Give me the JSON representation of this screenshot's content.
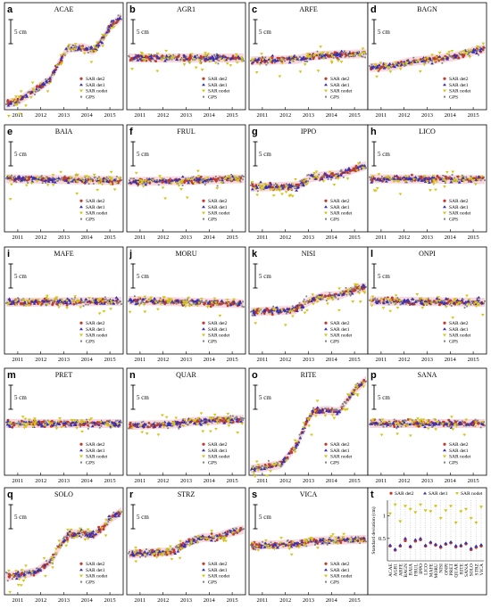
{
  "figure": {
    "scale_bar_label": "5 cm",
    "years": [
      "2011",
      "2012",
      "2013",
      "2014",
      "2015"
    ],
    "legend": [
      "SAR det2",
      "SAR det1",
      "SAR nodet",
      "GPS"
    ],
    "colors": {
      "SAR det2": "#c0392b",
      "SAR det1": "#3a2fb0",
      "SAR nodet": "#d4c41a",
      "GPS": "#7f7f7f",
      "band": "#f4b6c2"
    }
  },
  "chart_data": [
    {
      "type": "scatter",
      "panel": "a",
      "title": "ACAE",
      "x_range": [
        2010.5,
        2015.5
      ],
      "y_unit": "cm",
      "keypoints": [
        [
          2010.5,
          -9.5
        ],
        [
          2011.0,
          -9.0
        ],
        [
          2011.8,
          -6.5
        ],
        [
          2012.4,
          -4.5
        ],
        [
          2012.9,
          0.0
        ],
        [
          2013.2,
          2.0
        ],
        [
          2013.8,
          2.2
        ],
        [
          2014.3,
          1.5
        ],
        [
          2014.7,
          4.0
        ],
        [
          2015.0,
          6.5
        ],
        [
          2015.5,
          8.5
        ]
      ]
    },
    {
      "type": "scatter",
      "panel": "b",
      "title": "AGR1",
      "x_range": [
        2010.5,
        2015.5
      ],
      "y_unit": "cm",
      "keypoints": [
        [
          2010.5,
          0
        ],
        [
          2015.5,
          0
        ]
      ]
    },
    {
      "type": "scatter",
      "panel": "c",
      "title": "ARFE",
      "x_range": [
        2010.5,
        2015.5
      ],
      "y_unit": "cm",
      "keypoints": [
        [
          2010.5,
          -0.6
        ],
        [
          2012.5,
          -0.3
        ],
        [
          2013.3,
          0.5
        ],
        [
          2015.5,
          0.9
        ]
      ]
    },
    {
      "type": "scatter",
      "panel": "d",
      "title": "BAGN",
      "x_range": [
        2010.5,
        2015.5
      ],
      "y_unit": "cm",
      "keypoints": [
        [
          2010.5,
          -2.0
        ],
        [
          2011.4,
          -1.8
        ],
        [
          2012.2,
          -0.8
        ],
        [
          2013.0,
          -0.4
        ],
        [
          2013.8,
          0.0
        ],
        [
          2014.2,
          0.3
        ],
        [
          2015.0,
          1.4
        ],
        [
          2015.5,
          1.9
        ]
      ]
    },
    {
      "type": "scatter",
      "panel": "e",
      "title": "BAIA",
      "x_range": [
        2010.5,
        2015.5
      ],
      "y_unit": "cm",
      "keypoints": [
        [
          2010.5,
          0.3
        ],
        [
          2015.5,
          -0.1
        ]
      ]
    },
    {
      "type": "scatter",
      "panel": "f",
      "title": "FRUL",
      "x_range": [
        2010.5,
        2015.5
      ],
      "y_unit": "cm",
      "keypoints": [
        [
          2010.5,
          -0.3
        ],
        [
          2013.0,
          -0.1
        ],
        [
          2015.5,
          0.3
        ]
      ]
    },
    {
      "type": "scatter",
      "panel": "g",
      "title": "IPPO",
      "x_range": [
        2010.5,
        2015.5
      ],
      "y_unit": "cm",
      "keypoints": [
        [
          2010.5,
          -1.5
        ],
        [
          2012.5,
          -1.2
        ],
        [
          2013.1,
          0.5
        ],
        [
          2013.8,
          1.0
        ],
        [
          2014.3,
          1.1
        ],
        [
          2015.0,
          2.3
        ],
        [
          2015.5,
          3.0
        ]
      ]
    },
    {
      "type": "scatter",
      "panel": "h",
      "title": "LICO",
      "x_range": [
        2010.5,
        2015.5
      ],
      "y_unit": "cm",
      "keypoints": [
        [
          2010.5,
          0.3
        ],
        [
          2015.5,
          0.1
        ]
      ]
    },
    {
      "type": "scatter",
      "panel": "i",
      "title": "MAFE",
      "x_range": [
        2010.5,
        2015.5
      ],
      "y_unit": "cm",
      "keypoints": [
        [
          2010.5,
          0.0
        ],
        [
          2015.5,
          0.2
        ]
      ]
    },
    {
      "type": "scatter",
      "panel": "j",
      "title": "MORU",
      "x_range": [
        2010.5,
        2015.5
      ],
      "y_unit": "cm",
      "keypoints": [
        [
          2010.5,
          0.4
        ],
        [
          2015.5,
          -0.3
        ]
      ]
    },
    {
      "type": "scatter",
      "panel": "k",
      "title": "NISI",
      "x_range": [
        2010.5,
        2015.5
      ],
      "y_unit": "cm",
      "keypoints": [
        [
          2010.5,
          -2.0
        ],
        [
          2012.4,
          -1.6
        ],
        [
          2013.1,
          0.4
        ],
        [
          2013.7,
          1.3
        ],
        [
          2014.3,
          1.4
        ],
        [
          2015.0,
          2.6
        ],
        [
          2015.5,
          3.2
        ]
      ]
    },
    {
      "type": "scatter",
      "panel": "l",
      "title": "ONPI",
      "x_range": [
        2010.5,
        2015.5
      ],
      "y_unit": "cm",
      "keypoints": [
        [
          2010.5,
          0.3
        ],
        [
          2015.5,
          0.0
        ]
      ]
    },
    {
      "type": "scatter",
      "panel": "m",
      "title": "PRET",
      "x_range": [
        2010.5,
        2015.5
      ],
      "y_unit": "cm",
      "keypoints": [
        [
          2010.5,
          0.0
        ],
        [
          2015.5,
          0.0
        ]
      ]
    },
    {
      "type": "scatter",
      "panel": "n",
      "title": "QUAR",
      "x_range": [
        2010.5,
        2015.5
      ],
      "y_unit": "cm",
      "keypoints": [
        [
          2010.5,
          -0.4
        ],
        [
          2012.5,
          -0.1
        ],
        [
          2013.2,
          0.4
        ],
        [
          2015.5,
          0.9
        ]
      ]
    },
    {
      "type": "scatter",
      "panel": "o",
      "title": "RITE",
      "x_range": [
        2010.5,
        2015.5
      ],
      "y_unit": "cm",
      "keypoints": [
        [
          2010.5,
          -9.5
        ],
        [
          2011.8,
          -8.5
        ],
        [
          2012.5,
          -4.5
        ],
        [
          2012.9,
          0.0
        ],
        [
          2013.2,
          2.5
        ],
        [
          2013.8,
          2.8
        ],
        [
          2014.3,
          2.4
        ],
        [
          2014.7,
          5.0
        ],
        [
          2015.0,
          7.0
        ],
        [
          2015.5,
          9.0
        ]
      ]
    },
    {
      "type": "scatter",
      "panel": "p",
      "title": "SANA",
      "x_range": [
        2010.5,
        2015.5
      ],
      "y_unit": "cm",
      "keypoints": [
        [
          2010.5,
          0.0
        ],
        [
          2015.5,
          0.0
        ]
      ]
    },
    {
      "type": "scatter",
      "panel": "q",
      "title": "SOLO",
      "x_range": [
        2010.5,
        2015.5
      ],
      "y_unit": "cm",
      "keypoints": [
        [
          2010.5,
          -7.0
        ],
        [
          2011.8,
          -6.0
        ],
        [
          2012.5,
          -3.5
        ],
        [
          2012.9,
          0.0
        ],
        [
          2013.2,
          1.8
        ],
        [
          2013.8,
          2.0
        ],
        [
          2014.3,
          1.6
        ],
        [
          2014.7,
          3.2
        ],
        [
          2015.0,
          5.0
        ],
        [
          2015.5,
          6.5
        ]
      ]
    },
    {
      "type": "scatter",
      "panel": "r",
      "title": "STRZ",
      "x_range": [
        2010.5,
        2015.5
      ],
      "y_unit": "cm",
      "keypoints": [
        [
          2010.5,
          -2.3
        ],
        [
          2012.4,
          -1.8
        ],
        [
          2013.1,
          0.2
        ],
        [
          2013.7,
          1.1
        ],
        [
          2014.3,
          1.2
        ],
        [
          2015.0,
          2.3
        ],
        [
          2015.5,
          2.8
        ]
      ]
    },
    {
      "type": "scatter",
      "panel": "s",
      "title": "VICA",
      "x_range": [
        2010.5,
        2015.5
      ],
      "y_unit": "cm",
      "keypoints": [
        [
          2010.5,
          -0.5
        ],
        [
          2012.5,
          -0.2
        ],
        [
          2013.3,
          0.4
        ],
        [
          2015.5,
          0.8
        ]
      ]
    },
    {
      "type": "scatter",
      "panel": "t",
      "ylabel": "Standard deviation (cm)",
      "ylim": [
        0,
        1.35
      ],
      "yticks": [
        "0.5",
        "1"
      ],
      "categories": [
        "ACAE",
        "AGR1",
        "ARFE",
        "BAGN",
        "BAIA",
        "FRUL",
        "IPPO",
        "LICO",
        "MAFE",
        "MORU",
        "NISI",
        "ONPI",
        "PRET",
        "QUAR",
        "RITE",
        "SANA",
        "SOLO",
        "STRZ",
        "VICA"
      ],
      "series": [
        {
          "name": "SAR det2",
          "values": [
            0.33,
            0.24,
            0.33,
            0.45,
            0.31,
            0.44,
            0.47,
            0.33,
            0.4,
            0.35,
            0.3,
            0.37,
            0.4,
            0.31,
            0.33,
            0.38,
            0.25,
            0.3,
            0.33
          ]
        },
        {
          "name": "SAR det1",
          "values": [
            0.35,
            0.26,
            0.35,
            0.5,
            0.33,
            0.47,
            0.5,
            0.35,
            0.42,
            0.37,
            0.33,
            0.39,
            0.42,
            0.34,
            0.35,
            0.4,
            0.28,
            0.33,
            0.36
          ]
        },
        {
          "name": "SAR nodet",
          "values": [
            1.05,
            1.25,
            0.88,
            1.22,
            1.15,
            1.08,
            1.25,
            1.12,
            1.1,
            1.22,
            0.95,
            1.12,
            1.22,
            0.85,
            1.1,
            1.15,
            0.95,
            0.85,
            1.2
          ]
        }
      ]
    }
  ]
}
